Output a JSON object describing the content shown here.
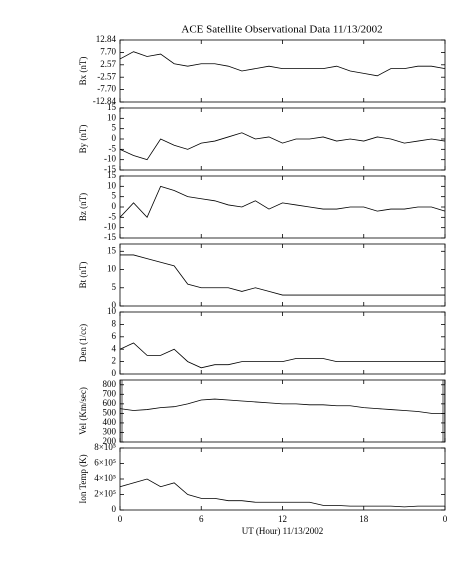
{
  "chart_data": [
    {
      "type": "line",
      "title": "ACE Satellite Observational Data   11/13/2002",
      "ylabel": "Bx (nT)",
      "color": "#000000",
      "xlim": [
        0,
        24
      ],
      "xticks": [
        0,
        6,
        12,
        18,
        {
          "value": 24,
          "label": "0"
        }
      ],
      "ylim": [
        -12.84,
        12.84
      ],
      "yticks": [
        12.84,
        {
          "value": 7.7,
          "label": "7.70"
        },
        2.57,
        -2.57,
        {
          "value": -7.7,
          "label": "-7.70"
        },
        -12.84
      ],
      "x": [
        0,
        1,
        2,
        3,
        4,
        5,
        6,
        7,
        8,
        9,
        10,
        11,
        12,
        13,
        14,
        15,
        16,
        17,
        18,
        19,
        20,
        21,
        22,
        23,
        24
      ],
      "values": [
        5,
        8,
        6,
        7,
        3,
        2,
        3,
        3,
        2,
        0,
        1,
        2,
        1,
        1,
        1,
        1,
        2,
        0,
        -1,
        -2,
        1,
        1,
        2,
        2,
        1
      ]
    },
    {
      "type": "line",
      "ylabel": "By (nT)",
      "color": "#000000",
      "xlim": [
        0,
        24
      ],
      "xticks": [
        0,
        6,
        12,
        18,
        {
          "value": 24,
          "label": "0"
        }
      ],
      "ylim": [
        -15,
        15
      ],
      "yticks": [
        15,
        10,
        5,
        0,
        -5,
        -10,
        -15
      ],
      "x": [
        0,
        1,
        2,
        3,
        4,
        5,
        6,
        7,
        8,
        9,
        10,
        11,
        12,
        13,
        14,
        15,
        16,
        17,
        18,
        19,
        20,
        21,
        22,
        23,
        24
      ],
      "values": [
        -5,
        -8,
        -10,
        0,
        -3,
        -5,
        -2,
        -1,
        1,
        3,
        0,
        1,
        -2,
        0,
        0,
        1,
        -1,
        0,
        -1,
        1,
        0,
        -2,
        -1,
        0,
        -1
      ]
    },
    {
      "type": "line",
      "ylabel": "Bz (nT)",
      "color": "#000000",
      "xlim": [
        0,
        24
      ],
      "xticks": [
        0,
        6,
        12,
        18,
        {
          "value": 24,
          "label": "0"
        }
      ],
      "ylim": [
        -15,
        15
      ],
      "yticks": [
        15,
        10,
        5,
        0,
        -5,
        -10,
        -15
      ],
      "x": [
        0,
        1,
        2,
        3,
        4,
        5,
        6,
        7,
        8,
        9,
        10,
        11,
        12,
        13,
        14,
        15,
        16,
        17,
        18,
        19,
        20,
        21,
        22,
        23,
        24
      ],
      "values": [
        -5,
        2,
        -5,
        10,
        8,
        5,
        4,
        3,
        1,
        0,
        3,
        -1,
        2,
        1,
        0,
        -1,
        -1,
        0,
        0,
        -2,
        -1,
        -1,
        0,
        0,
        -2
      ]
    },
    {
      "type": "line",
      "ylabel": "Bt (nT)",
      "color": "#000000",
      "xlim": [
        0,
        24
      ],
      "xticks": [
        0,
        6,
        12,
        18,
        {
          "value": 24,
          "label": "0"
        }
      ],
      "ylim": [
        0,
        17
      ],
      "yticks": [
        0,
        5,
        10,
        15
      ],
      "x": [
        0,
        1,
        2,
        3,
        4,
        5,
        6,
        7,
        8,
        9,
        10,
        11,
        12,
        13,
        14,
        15,
        16,
        17,
        18,
        19,
        20,
        21,
        22,
        23,
        24
      ],
      "values": [
        14,
        14,
        13,
        12,
        11,
        6,
        5,
        5,
        5,
        4,
        5,
        4,
        3,
        3,
        3,
        3,
        3,
        3,
        3,
        3,
        3,
        3,
        3,
        3,
        3
      ]
    },
    {
      "type": "line",
      "ylabel": "Den (1/cc)",
      "color": "#000000",
      "xlim": [
        0,
        24
      ],
      "xticks": [
        0,
        6,
        12,
        18,
        {
          "value": 24,
          "label": "0"
        }
      ],
      "ylim": [
        0,
        10
      ],
      "yticks": [
        0,
        2,
        4,
        6,
        8,
        10
      ],
      "x": [
        0,
        1,
        2,
        3,
        4,
        5,
        6,
        7,
        8,
        9,
        10,
        11,
        12,
        13,
        14,
        15,
        16,
        17,
        18,
        19,
        20,
        21,
        22,
        23,
        24
      ],
      "values": [
        4,
        5,
        3,
        3,
        4,
        2,
        1,
        1.5,
        1.5,
        2,
        2,
        2,
        2,
        2.5,
        2.5,
        2.5,
        2,
        2,
        2,
        2,
        2,
        2,
        2,
        2,
        2
      ]
    },
    {
      "type": "line",
      "ylabel": "Vel (Km/sec)",
      "color": "#000000",
      "xlim": [
        0,
        24
      ],
      "xticks": [
        0,
        6,
        12,
        18,
        {
          "value": 24,
          "label": "0"
        }
      ],
      "ylim": [
        200,
        850
      ],
      "yticks": [
        200,
        300,
        400,
        500,
        600,
        700,
        800
      ],
      "x": [
        0,
        1,
        2,
        3,
        4,
        5,
        6,
        7,
        8,
        9,
        10,
        11,
        12,
        13,
        14,
        15,
        16,
        17,
        18,
        19,
        20,
        21,
        22,
        23,
        24
      ],
      "values": [
        550,
        530,
        540,
        560,
        570,
        600,
        640,
        650,
        640,
        630,
        620,
        610,
        600,
        600,
        590,
        590,
        580,
        580,
        560,
        550,
        540,
        530,
        520,
        500,
        500
      ]
    },
    {
      "type": "line",
      "ylabel": "Ion Temp (K)",
      "xlabel": "UT (Hour)   11/13/2002",
      "color": "#000000",
      "xlim": [
        0,
        24
      ],
      "xticks": [
        0,
        6,
        12,
        18,
        {
          "value": 24,
          "label": "0"
        }
      ],
      "ylim": [
        0,
        800000
      ],
      "yticks": [
        0,
        {
          "value": 200000,
          "label": "2×10⁵"
        },
        {
          "value": 400000,
          "label": "4×10⁵"
        },
        {
          "value": 600000,
          "label": "6×10⁵"
        },
        {
          "value": 800000,
          "label": "8×10⁵"
        }
      ],
      "x": [
        0,
        1,
        2,
        3,
        4,
        5,
        6,
        7,
        8,
        9,
        10,
        11,
        12,
        13,
        14,
        15,
        16,
        17,
        18,
        19,
        20,
        21,
        22,
        23,
        24
      ],
      "values": [
        300000,
        350000,
        400000,
        300000,
        350000,
        200000,
        150000,
        150000,
        120000,
        120000,
        100000,
        100000,
        100000,
        100000,
        100000,
        60000,
        60000,
        50000,
        50000,
        50000,
        50000,
        40000,
        50000,
        50000,
        50000
      ]
    }
  ]
}
